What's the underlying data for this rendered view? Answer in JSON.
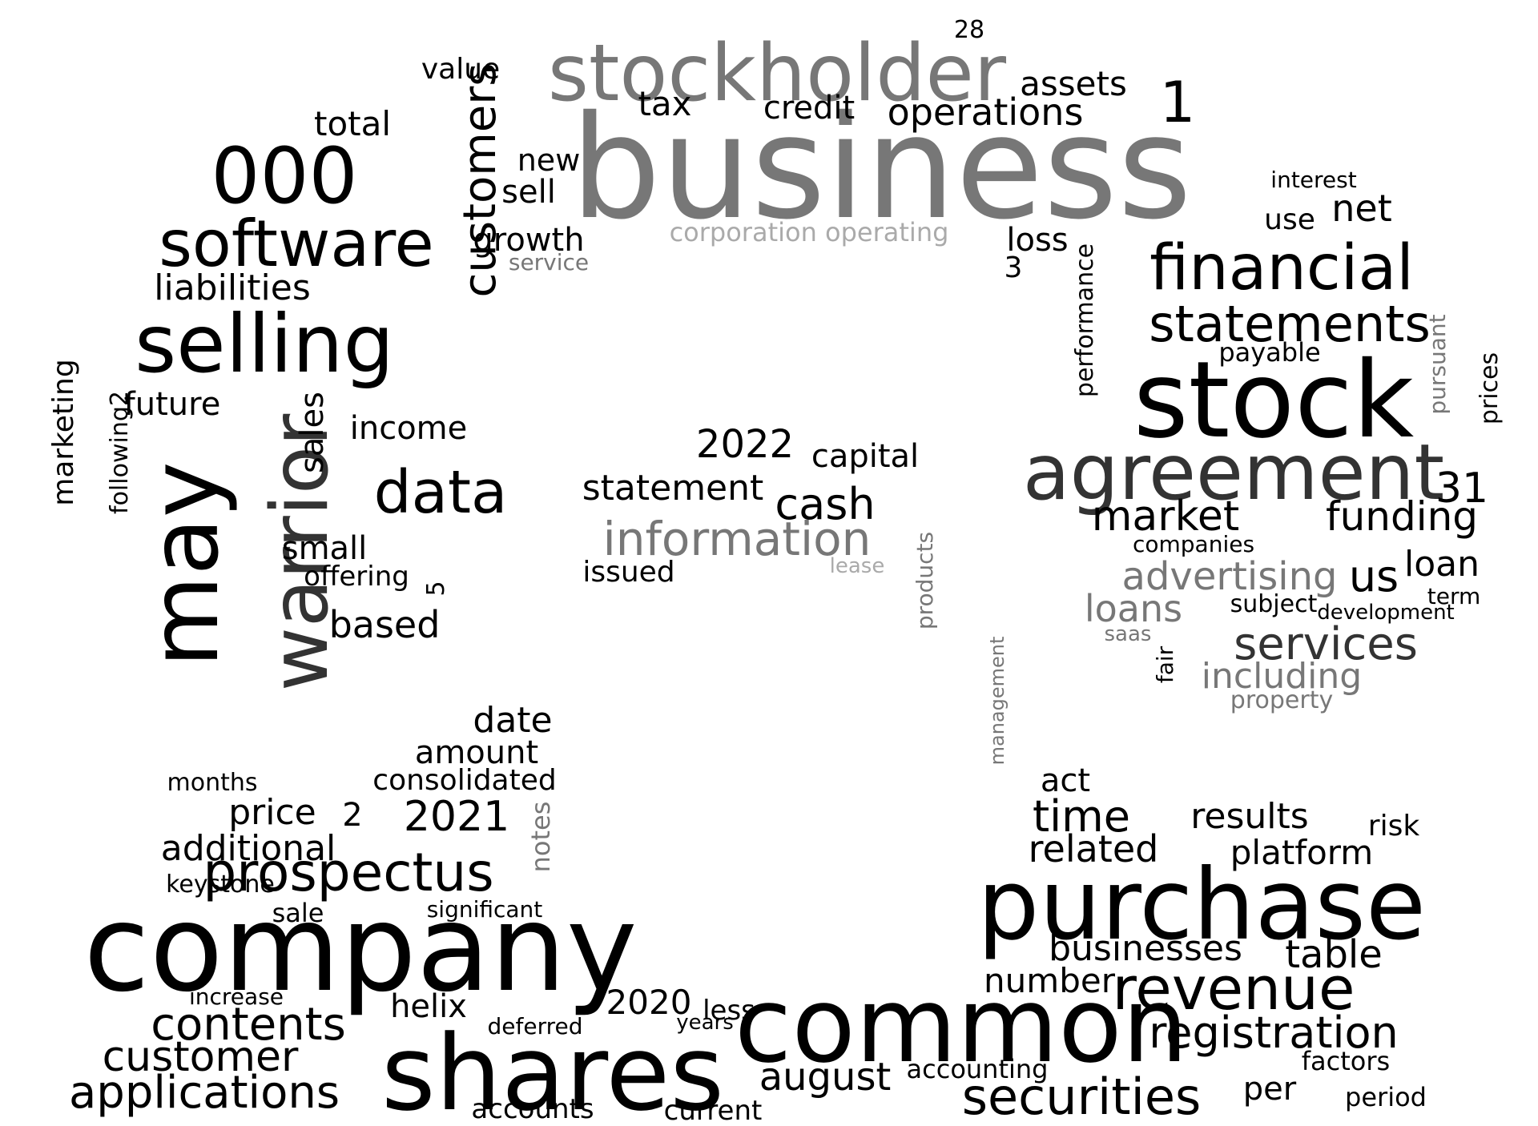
{
  "palette": {
    "black": "#000000",
    "dark": "#333333",
    "gray": "#777777",
    "light": "#aaaaaa",
    "faint": "#cccccc"
  },
  "words": [
    "business",
    "stockholder",
    "stock",
    "agreement",
    "company",
    "purchase",
    "common",
    "shares",
    "selling",
    "may",
    "warrior",
    "software",
    "financial",
    "000",
    "statements",
    "data",
    "customers",
    "information",
    "prospectus",
    "revenue",
    "registration",
    "securities",
    "time",
    "services",
    "including",
    "applications",
    "contents",
    "customer",
    "market",
    "funding",
    "advertising",
    "loans",
    "loan",
    "us",
    "31",
    "2022",
    "statement",
    "cash",
    "capital",
    "issued",
    "corporation operating",
    "operations",
    "assets",
    "tax",
    "credit",
    "value",
    "total",
    "liabilities",
    "future",
    "sales",
    "income",
    "small",
    "offering",
    "based",
    "marketing",
    "following2",
    "consolidated",
    "price",
    "additional",
    "2021",
    "amount",
    "date",
    "notes",
    "businesses",
    "table",
    "number",
    "platform",
    "results",
    "related",
    "risk",
    "act",
    "august",
    "accounts",
    "current",
    "helix",
    "2020",
    "less",
    "increase",
    "deferred",
    "years",
    "accounting",
    "factors",
    "per",
    "period",
    "performance",
    "prices",
    "pursuant",
    "interest",
    "net",
    "use",
    "loss",
    "growth",
    "new",
    "sell",
    "service",
    "payable",
    "companies",
    "subject",
    "development",
    "term",
    "management",
    "products",
    "property",
    "fair",
    "saas",
    "lease",
    "months",
    "keystone",
    "sale",
    "significant",
    "1",
    "3",
    "5",
    "2",
    "28"
  ]
}
